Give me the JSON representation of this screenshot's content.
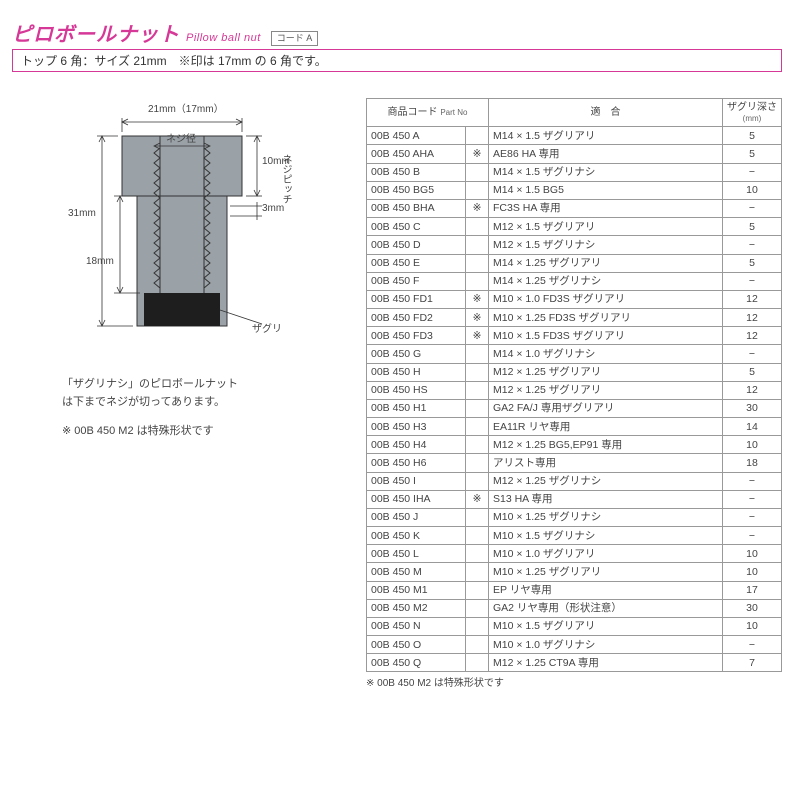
{
  "colors": {
    "accent": "#d63897",
    "diagram_fill": "#9aa2a8",
    "diagram_cut": "#1e1e1e",
    "stroke": "#333333",
    "table_border": "#999999"
  },
  "header": {
    "title_jp": "ピロボールナット",
    "title_en": "Pillow ball nut",
    "code_label": "コード A",
    "spec_bar": "トップ 6 角：サイズ 21mm　※印は 17mm の 6 角です。"
  },
  "diagram": {
    "width_label": "21mm（17mm）",
    "thread_dia_label": "ネジ径",
    "height_label": "31mm",
    "shoulder_label": "10mm",
    "pitch_gap_label": "3mm",
    "pitch_side_label": "ネジピッチ",
    "shank_label": "18mm",
    "counterbore_label": "ザグリ"
  },
  "notes": {
    "line1": "「ザグリナシ」のピロボールナット",
    "line2": "は下までネジが切ってあります。",
    "line3": "※ 00B 450 M2 は特殊形状です"
  },
  "table": {
    "headers": {
      "part_no_jp": "商品コード",
      "part_no_en": "Part No",
      "fit": "適　合",
      "depth_l1": "ザグリ深さ",
      "depth_l2": "(mm)"
    },
    "rows": [
      {
        "code": "00B 450 A",
        "star": "",
        "fit": "M14 × 1.5 ザグリアリ",
        "depth": "5"
      },
      {
        "code": "00B 450 AHA",
        "star": "※",
        "fit": "AE86 HA 専用",
        "depth": "5"
      },
      {
        "code": "00B 450 B",
        "star": "",
        "fit": "M14 × 1.5 ザグリナシ",
        "depth": "−"
      },
      {
        "code": "00B 450 BG5",
        "star": "",
        "fit": "M14 × 1.5 BG5",
        "depth": "10"
      },
      {
        "code": "00B 450 BHA",
        "star": "※",
        "fit": "FC3S HA 専用",
        "depth": "−"
      },
      {
        "code": "00B 450 C",
        "star": "",
        "fit": "M12 × 1.5 ザグリアリ",
        "depth": "5"
      },
      {
        "code": "00B 450 D",
        "star": "",
        "fit": "M12 × 1.5 ザグリナシ",
        "depth": "−"
      },
      {
        "code": "00B 450 E",
        "star": "",
        "fit": "M14 × 1.25 ザグリアリ",
        "depth": "5"
      },
      {
        "code": "00B 450 F",
        "star": "",
        "fit": "M14 × 1.25 ザグリナシ",
        "depth": "−"
      },
      {
        "code": "00B 450 FD1",
        "star": "※",
        "fit": "M10 × 1.0 FD3S ザグリアリ",
        "depth": "12"
      },
      {
        "code": "00B 450 FD2",
        "star": "※",
        "fit": "M10 × 1.25 FD3S ザグリアリ",
        "depth": "12"
      },
      {
        "code": "00B 450 FD3",
        "star": "※",
        "fit": "M10 × 1.5 FD3S ザグリアリ",
        "depth": "12"
      },
      {
        "code": "00B 450 G",
        "star": "",
        "fit": "M14 × 1.0 ザグリナシ",
        "depth": "−"
      },
      {
        "code": "00B 450 H",
        "star": "",
        "fit": "M12 × 1.25 ザグリアリ",
        "depth": "5"
      },
      {
        "code": "00B 450 HS",
        "star": "",
        "fit": "M12 × 1.25 ザグリアリ",
        "depth": "12"
      },
      {
        "code": "00B 450 H1",
        "star": "",
        "fit": "GA2 FA/J 専用ザグリアリ",
        "depth": "30"
      },
      {
        "code": "00B 450 H3",
        "star": "",
        "fit": "EA11R リヤ専用",
        "depth": "14"
      },
      {
        "code": "00B 450 H4",
        "star": "",
        "fit": "M12 × 1.25 BG5,EP91 専用",
        "depth": "10"
      },
      {
        "code": "00B 450 H6",
        "star": "",
        "fit": "アリスト専用",
        "depth": "18"
      },
      {
        "code": "00B 450 I",
        "star": "",
        "fit": "M12 × 1.25 ザグリナシ",
        "depth": "−"
      },
      {
        "code": "00B 450 IHA",
        "star": "※",
        "fit": "S13 HA 専用",
        "depth": "−"
      },
      {
        "code": "00B 450 J",
        "star": "",
        "fit": "M10 × 1.25 ザグリナシ",
        "depth": "−"
      },
      {
        "code": "00B 450 K",
        "star": "",
        "fit": "M10 × 1.5 ザグリナシ",
        "depth": "−"
      },
      {
        "code": "00B 450 L",
        "star": "",
        "fit": "M10 × 1.0 ザグリアリ",
        "depth": "10"
      },
      {
        "code": "00B 450 M",
        "star": "",
        "fit": "M10 × 1.25 ザグリアリ",
        "depth": "10"
      },
      {
        "code": "00B 450 M1",
        "star": "",
        "fit": "EP リヤ専用",
        "depth": "17"
      },
      {
        "code": "00B 450 M2",
        "star": "",
        "fit": "GA2 リヤ専用（形状注意）",
        "depth": "30"
      },
      {
        "code": "00B 450 N",
        "star": "",
        "fit": "M10 × 1.5 ザグリアリ",
        "depth": "10"
      },
      {
        "code": "00B 450 O",
        "star": "",
        "fit": "M10 × 1.0 ザグリナシ",
        "depth": "−"
      },
      {
        "code": "00B 450 Q",
        "star": "",
        "fit": "M12 × 1.25 CT9A 専用",
        "depth": "7"
      }
    ],
    "footnote": "※ 00B 450 M2 は特殊形状です"
  }
}
